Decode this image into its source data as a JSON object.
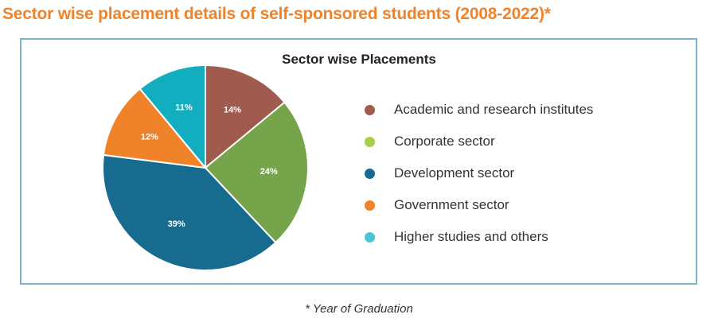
{
  "page": {
    "heading": "Sector wise placement details of self-sponsored students (2008-2022)*",
    "footnote": "* Year of Graduation"
  },
  "chart_data": {
    "type": "pie",
    "title": "Sector wise Placements",
    "legend_position": "right",
    "categories": [
      "Academic and research institutes",
      "Corporate sector",
      "Development sector",
      "Government sector",
      "Higher studies and others"
    ],
    "values": [
      14,
      24,
      39,
      12,
      11
    ],
    "labels": [
      "14%",
      "24%",
      "39%",
      "12%",
      "11%"
    ],
    "colors": [
      "#a05a4e",
      "#76a44a",
      "#176b8f",
      "#f0832a",
      "#12aebf"
    ],
    "legend_colors": [
      "#a05a4e",
      "#a6cf4a",
      "#176b8f",
      "#f0832a",
      "#4cc4d4"
    ]
  }
}
